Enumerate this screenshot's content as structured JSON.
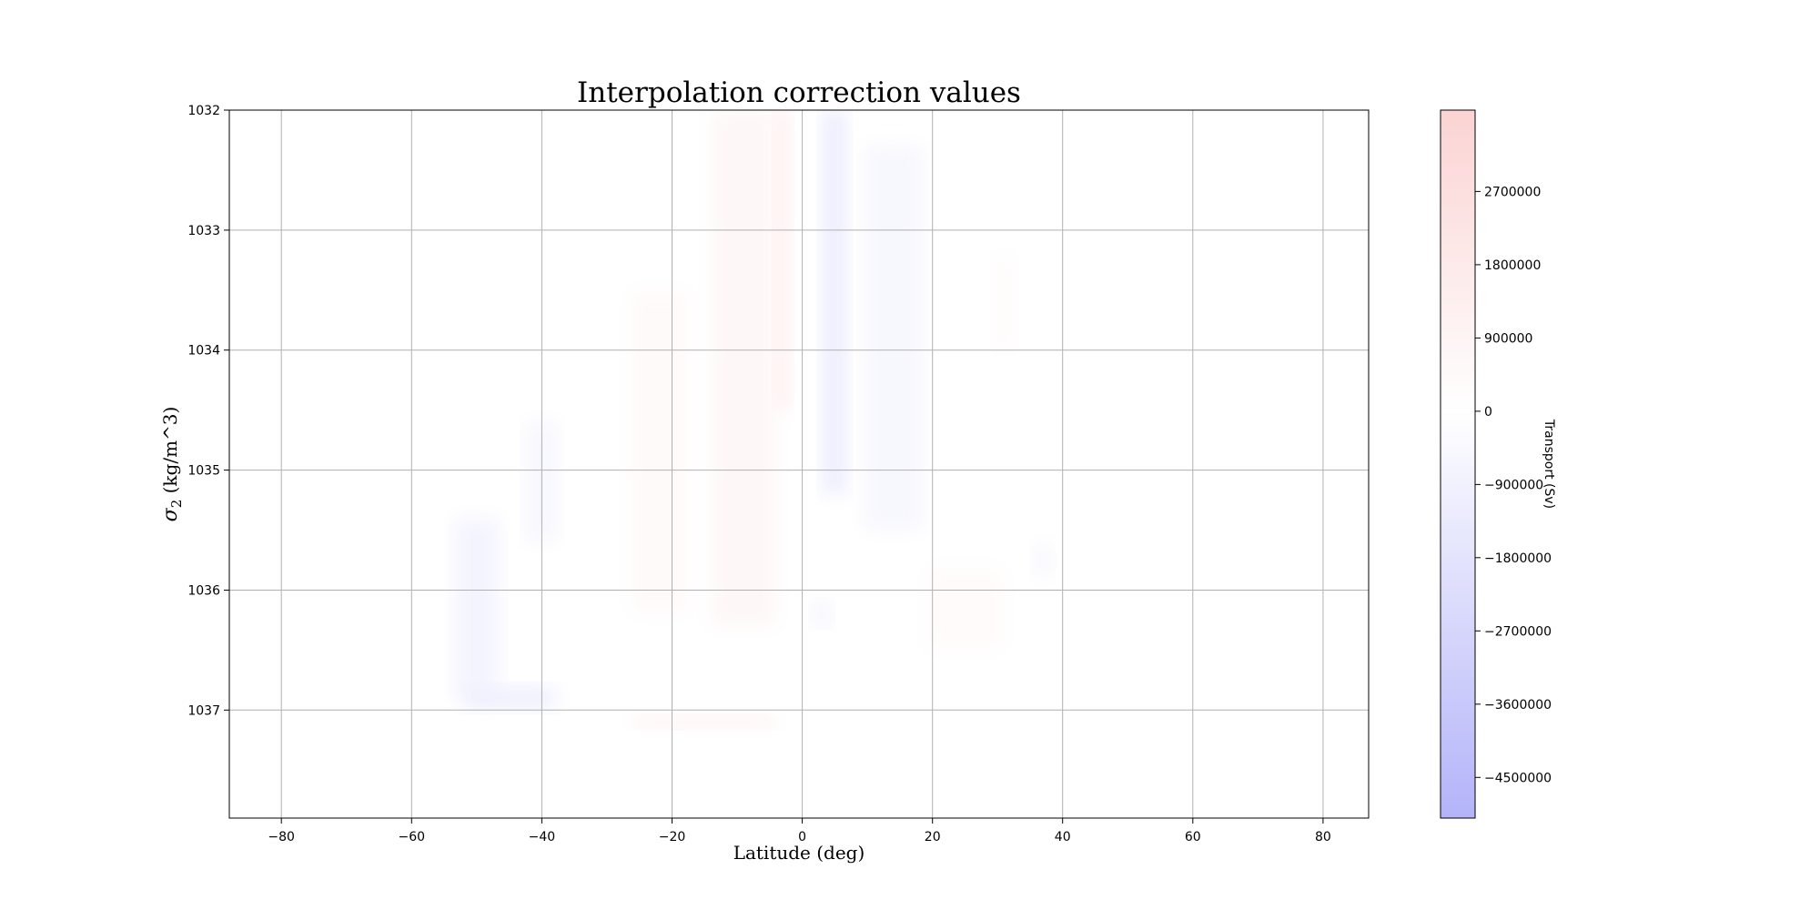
{
  "chart_data": {
    "type": "heatmap",
    "title": "Interpolation correction values",
    "xlabel": "Latitude (deg)",
    "ylabel_main": "σ",
    "ylabel_sub": "2",
    "ylabel_unit": " (kg/m^3)",
    "xlim": [
      -88,
      87
    ],
    "ylim": [
      1032,
      1037.9
    ],
    "y_inverted": true,
    "grid": true,
    "x_ticks": [
      -80,
      -60,
      -40,
      -20,
      0,
      20,
      40,
      60,
      80
    ],
    "x_tick_labels": [
      "−80",
      "−60",
      "−40",
      "−20",
      "0",
      "20",
      "40",
      "60",
      "80"
    ],
    "y_ticks": [
      1032,
      1033,
      1034,
      1035,
      1036,
      1037
    ],
    "y_tick_labels": [
      "1032",
      "1033",
      "1034",
      "1035",
      "1036",
      "1037"
    ],
    "colormap": "bwr",
    "colorbar": {
      "label": "Transport (Sv)",
      "vmin": -5000000,
      "vmax": 3700000,
      "ticks": [
        2700000,
        1800000,
        900000,
        0,
        -900000,
        -1800000,
        -2700000,
        -3600000,
        -4500000
      ],
      "tick_labels": [
        "2700000",
        "1800000",
        "900000",
        "0",
        "−900000",
        "−1800000",
        "−2700000",
        "−3600000",
        "−4500000"
      ],
      "color_high": "#fbd3d3",
      "color_mid": "#ffffff",
      "color_low": "#b3b3f9"
    },
    "features": [
      {
        "lat": -9,
        "lat_width": 10,
        "sigma_top": 1032.0,
        "sigma_bottom": 1036.3,
        "value": 700000,
        "note": "broad positive band south of equator"
      },
      {
        "lat": -3,
        "lat_width": 2.5,
        "sigma_top": 1032.0,
        "sigma_bottom": 1034.5,
        "value": 1300000,
        "note": "narrow strong positive near equator"
      },
      {
        "lat": -22,
        "lat_width": 9,
        "sigma_top": 1033.5,
        "sigma_bottom": 1036.2,
        "value": 400000
      },
      {
        "lat": 5,
        "lat_width": 4,
        "sigma_top": 1032.0,
        "sigma_bottom": 1035.2,
        "value": -1100000,
        "note": "negative band north of equator"
      },
      {
        "lat": 14,
        "lat_width": 9,
        "sigma_top": 1032.3,
        "sigma_bottom": 1035.5,
        "value": -550000
      },
      {
        "lat": -50,
        "lat_width": 7,
        "sigma_top": 1035.4,
        "sigma_bottom": 1036.9,
        "value": -700000
      },
      {
        "lat": -40,
        "lat_width": 5,
        "sigma_top": 1034.6,
        "sigma_bottom": 1035.6,
        "value": -500000
      },
      {
        "lat": -45,
        "lat_width": 14,
        "sigma_top": 1036.8,
        "sigma_bottom": 1037.0,
        "value": -1000000
      },
      {
        "lat": -15,
        "lat_width": 22,
        "sigma_top": 1037.05,
        "sigma_bottom": 1037.15,
        "value": 1100000
      },
      {
        "lat": 31,
        "lat_width": 3,
        "sigma_top": 1033.2,
        "sigma_bottom": 1034.0,
        "value": 350000
      },
      {
        "lat": 37,
        "lat_width": 3,
        "sigma_top": 1035.6,
        "sigma_bottom": 1035.9,
        "value": -400000
      },
      {
        "lat": 3,
        "lat_width": 3,
        "sigma_top": 1036.1,
        "sigma_bottom": 1036.3,
        "value": -700000
      },
      {
        "lat": 25,
        "lat_width": 12,
        "sigma_top": 1035.8,
        "sigma_bottom": 1036.5,
        "value": 350000
      }
    ]
  }
}
